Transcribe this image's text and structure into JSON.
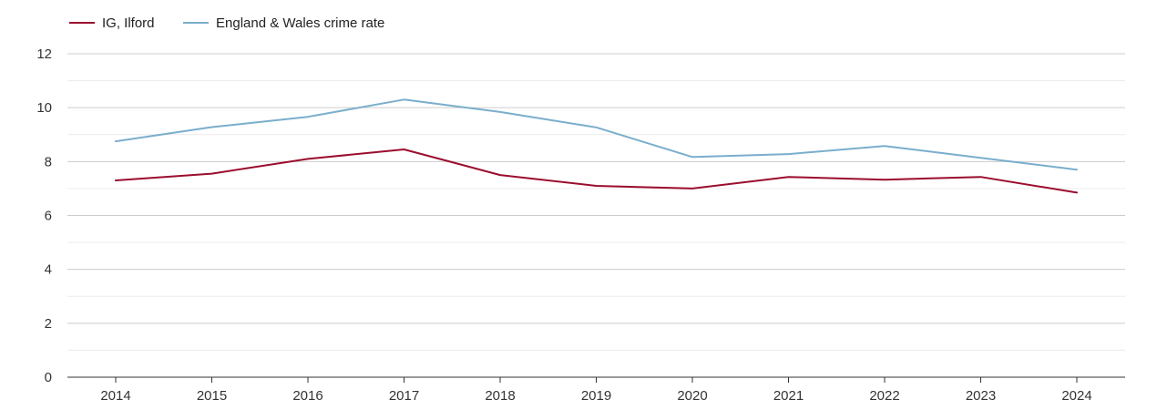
{
  "chart_data": {
    "type": "line",
    "title": "",
    "xlabel": "",
    "ylabel": "",
    "categories": [
      "2014",
      "2015",
      "2016",
      "2017",
      "2018",
      "2019",
      "2020",
      "2021",
      "2022",
      "2023",
      "2024"
    ],
    "ylim": [
      0,
      12
    ],
    "yticks": [
      0,
      2,
      4,
      6,
      8,
      10,
      12
    ],
    "grid": true,
    "legend_position": "top-left",
    "series": [
      {
        "name": "IG, Ilford",
        "color": "#9b0d2e",
        "values": [
          7.3,
          7.55,
          8.1,
          8.45,
          7.5,
          7.1,
          7.0,
          7.43,
          7.33,
          7.43,
          6.85
        ]
      },
      {
        "name": "England & Wales crime rate",
        "color": "#7aaecc",
        "values": [
          8.75,
          9.28,
          9.66,
          10.3,
          9.84,
          9.27,
          8.17,
          8.28,
          8.58,
          8.14,
          7.7
        ]
      }
    ]
  }
}
